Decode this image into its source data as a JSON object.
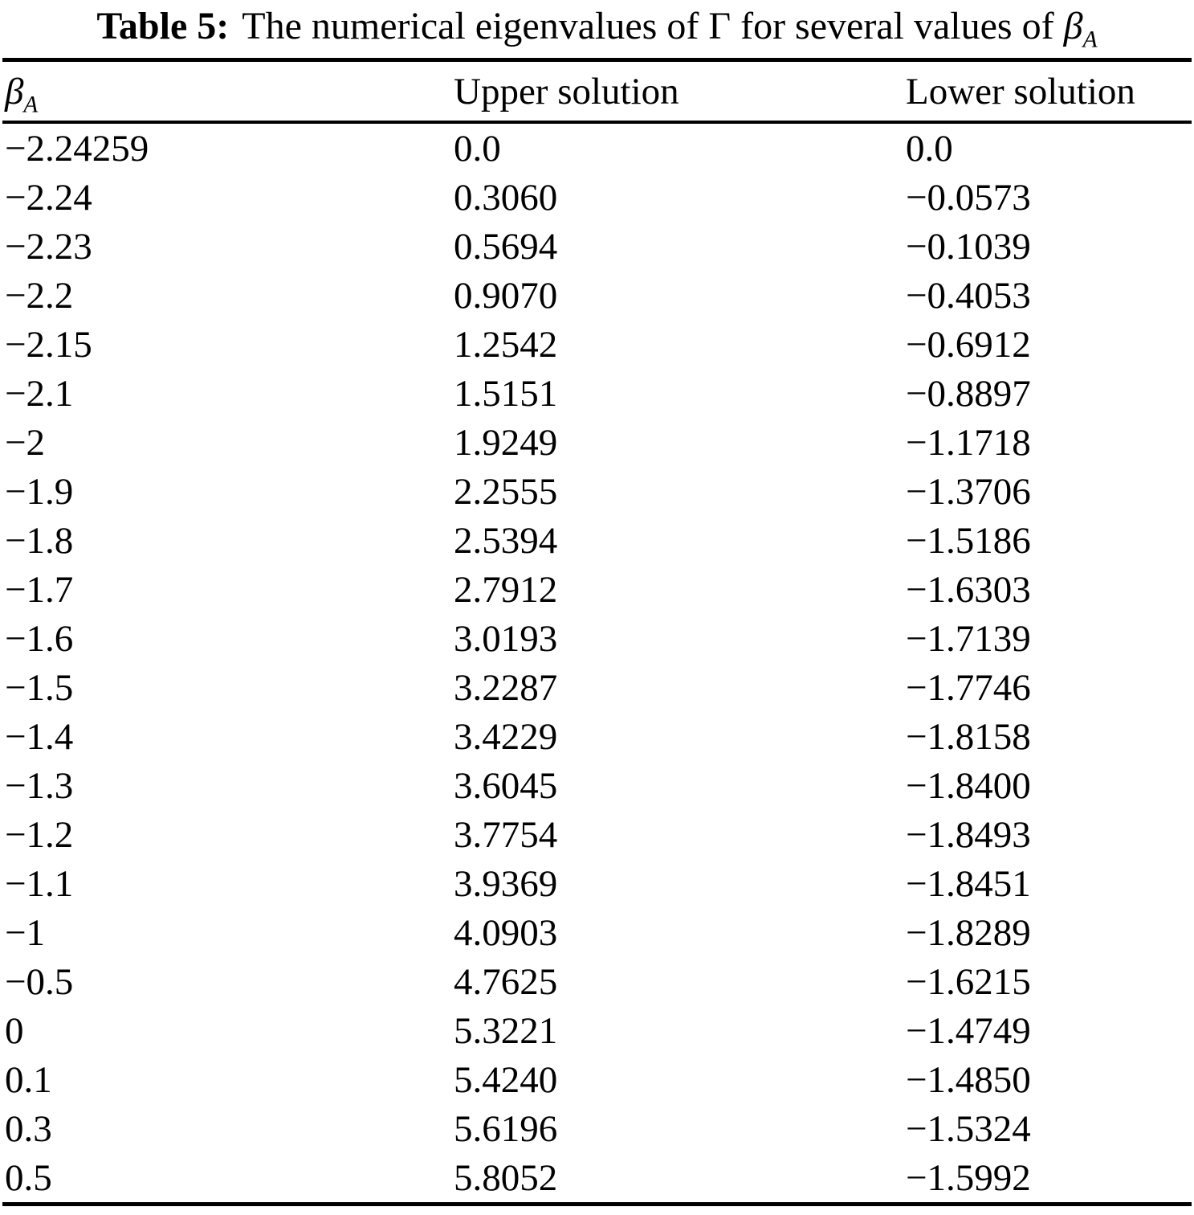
{
  "caption": {
    "label": "Table 5:",
    "body": "The numerical eigenvalues of Γ for several values of",
    "symbol": "β",
    "symbol_subscript": "A"
  },
  "table": {
    "header": {
      "col1_symbol": "β",
      "col1_subscript": "A",
      "col2": "Upper solution",
      "col3": "Lower solution"
    },
    "rows": [
      {
        "beta": "−2.24259",
        "upper": "0.0",
        "lower": "0.0"
      },
      {
        "beta": "−2.24",
        "upper": "0.3060",
        "lower": "−0.0573"
      },
      {
        "beta": "−2.23",
        "upper": "0.5694",
        "lower": "−0.1039"
      },
      {
        "beta": "−2.2",
        "upper": "0.9070",
        "lower": "−0.4053"
      },
      {
        "beta": "−2.15",
        "upper": "1.2542",
        "lower": "−0.6912"
      },
      {
        "beta": "−2.1",
        "upper": "1.5151",
        "lower": "−0.8897"
      },
      {
        "beta": "−2",
        "upper": "1.9249",
        "lower": "−1.1718"
      },
      {
        "beta": "−1.9",
        "upper": "2.2555",
        "lower": "−1.3706"
      },
      {
        "beta": "−1.8",
        "upper": "2.5394",
        "lower": "−1.5186"
      },
      {
        "beta": "−1.7",
        "upper": "2.7912",
        "lower": "−1.6303"
      },
      {
        "beta": "−1.6",
        "upper": "3.0193",
        "lower": "−1.7139"
      },
      {
        "beta": "−1.5",
        "upper": "3.2287",
        "lower": "−1.7746"
      },
      {
        "beta": "−1.4",
        "upper": "3.4229",
        "lower": "−1.8158"
      },
      {
        "beta": "−1.3",
        "upper": "3.6045",
        "lower": "−1.8400"
      },
      {
        "beta": "−1.2",
        "upper": "3.7754",
        "lower": "−1.8493"
      },
      {
        "beta": "−1.1",
        "upper": "3.9369",
        "lower": "−1.8451"
      },
      {
        "beta": "−1",
        "upper": "4.0903",
        "lower": "−1.8289"
      },
      {
        "beta": "−0.5",
        "upper": "4.7625",
        "lower": "−1.6215"
      },
      {
        "beta": "0",
        "upper": "5.3221",
        "lower": "−1.4749"
      },
      {
        "beta": "0.1",
        "upper": "5.4240",
        "lower": "−1.4850"
      },
      {
        "beta": "0.3",
        "upper": "5.6196",
        "lower": "−1.5324"
      },
      {
        "beta": "0.5",
        "upper": "5.8052",
        "lower": "−1.5992"
      }
    ]
  }
}
